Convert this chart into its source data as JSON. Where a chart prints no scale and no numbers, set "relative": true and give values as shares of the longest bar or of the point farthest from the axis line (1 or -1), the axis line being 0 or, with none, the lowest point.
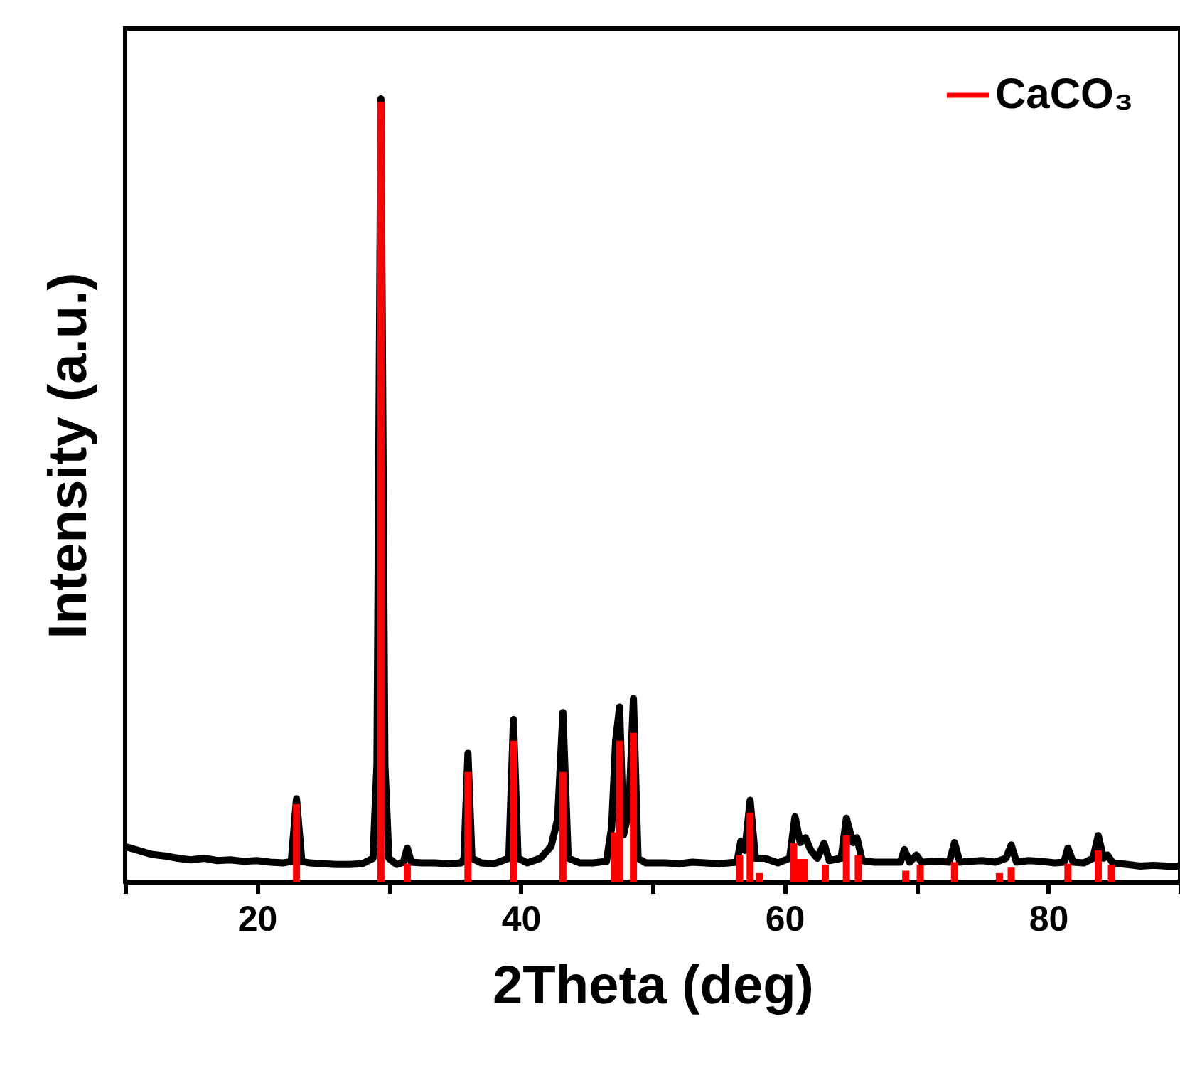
{
  "chart_data": {
    "type": "line",
    "xlabel": "2Theta (deg)",
    "ylabel": "Intensity (a.u.)",
    "relative": true,
    "xlim": [
      10,
      90
    ],
    "xticks": [
      {
        "value": 10,
        "label": null
      },
      20,
      {
        "value": 30,
        "label": null
      },
      40,
      {
        "value": 50,
        "label": null
      },
      60,
      {
        "value": 70,
        "label": null
      },
      80,
      {
        "value": 90,
        "label": null
      }
    ],
    "grid": false,
    "legend": "top right",
    "series": [
      {
        "color": "#000000",
        "x": [
          10,
          11,
          12,
          13,
          14,
          15,
          16,
          17,
          18,
          19,
          20,
          21,
          22,
          22.6,
          23.0,
          23.4,
          24,
          25,
          26,
          27,
          28,
          28.8,
          29.1,
          29.4,
          29.7,
          30.0,
          30.6,
          31.1,
          31.4,
          31.7,
          32.5,
          33.5,
          34.5,
          35.5,
          35.7,
          36.0,
          36.3,
          37,
          38,
          39.1,
          39.45,
          39.8,
          40.5,
          41.5,
          42.3,
          42.8,
          43.2,
          43.6,
          44.5,
          45.5,
          46.5,
          46.9,
          47.2,
          47.5,
          47.8,
          48.2,
          48.55,
          48.9,
          49.5,
          51,
          52,
          53,
          54,
          55,
          56.4,
          56.7,
          57.0,
          57.4,
          57.8,
          58.5,
          59.5,
          60.4,
          60.8,
          61.2,
          61.6,
          62.0,
          62.5,
          63.0,
          63.4,
          64.3,
          64.7,
          65.2,
          65.5,
          65.9,
          66.8,
          68,
          68.8,
          69.1,
          69.5,
          70.0,
          70.4,
          71.5,
          72.5,
          72.9,
          73.3,
          74,
          75,
          76,
          76.8,
          77.2,
          77.6,
          78.5,
          79.5,
          80.5,
          81.2,
          81.5,
          81.9,
          82.7,
          83.4,
          83.8,
          84.2,
          84.5,
          84.9,
          86,
          87,
          88,
          89,
          90
        ],
        "values": [
          0.045,
          0.04,
          0.035,
          0.033,
          0.03,
          0.028,
          0.03,
          0.027,
          0.028,
          0.026,
          0.027,
          0.025,
          0.024,
          0.026,
          0.106,
          0.026,
          0.024,
          0.023,
          0.022,
          0.022,
          0.023,
          0.03,
          0.15,
          1.0,
          0.15,
          0.03,
          0.022,
          0.025,
          0.043,
          0.025,
          0.024,
          0.024,
          0.023,
          0.024,
          0.03,
          0.164,
          0.03,
          0.024,
          0.023,
          0.03,
          0.207,
          0.03,
          0.024,
          0.03,
          0.045,
          0.08,
          0.216,
          0.03,
          0.024,
          0.024,
          0.026,
          0.07,
          0.18,
          0.223,
          0.06,
          0.09,
          0.234,
          0.03,
          0.024,
          0.024,
          0.023,
          0.025,
          0.024,
          0.023,
          0.025,
          0.052,
          0.04,
          0.104,
          0.03,
          0.03,
          0.024,
          0.03,
          0.083,
          0.05,
          0.056,
          0.04,
          0.03,
          0.049,
          0.027,
          0.03,
          0.081,
          0.05,
          0.056,
          0.027,
          0.025,
          0.025,
          0.025,
          0.041,
          0.025,
          0.034,
          0.025,
          0.026,
          0.025,
          0.05,
          0.025,
          0.026,
          0.027,
          0.025,
          0.03,
          0.047,
          0.025,
          0.027,
          0.026,
          0.024,
          0.025,
          0.043,
          0.025,
          0.024,
          0.03,
          0.059,
          0.03,
          0.034,
          0.024,
          0.022,
          0.02,
          0.021,
          0.02,
          0.02
        ]
      },
      {
        "type": "bar",
        "name": "CaCO₃",
        "color": "#ff0000",
        "x": [
          23.0,
          29.4,
          31.4,
          36.0,
          39.45,
          43.2,
          47.1,
          47.5,
          48.55,
          56.6,
          57.4,
          58.1,
          60.7,
          61.1,
          61.5,
          63.1,
          64.7,
          65.6,
          69.2,
          70.3,
          72.9,
          76.3,
          77.2,
          81.5,
          83.8,
          84.8
        ],
        "values": [
          0.099,
          0.996,
          0.023,
          0.14,
          0.18,
          0.14,
          0.063,
          0.18,
          0.19,
          0.034,
          0.088,
          0.011,
          0.049,
          0.029,
          0.029,
          0.022,
          0.059,
          0.034,
          0.014,
          0.022,
          0.025,
          0.011,
          0.018,
          0.023,
          0.04,
          0.022
        ]
      }
    ]
  }
}
